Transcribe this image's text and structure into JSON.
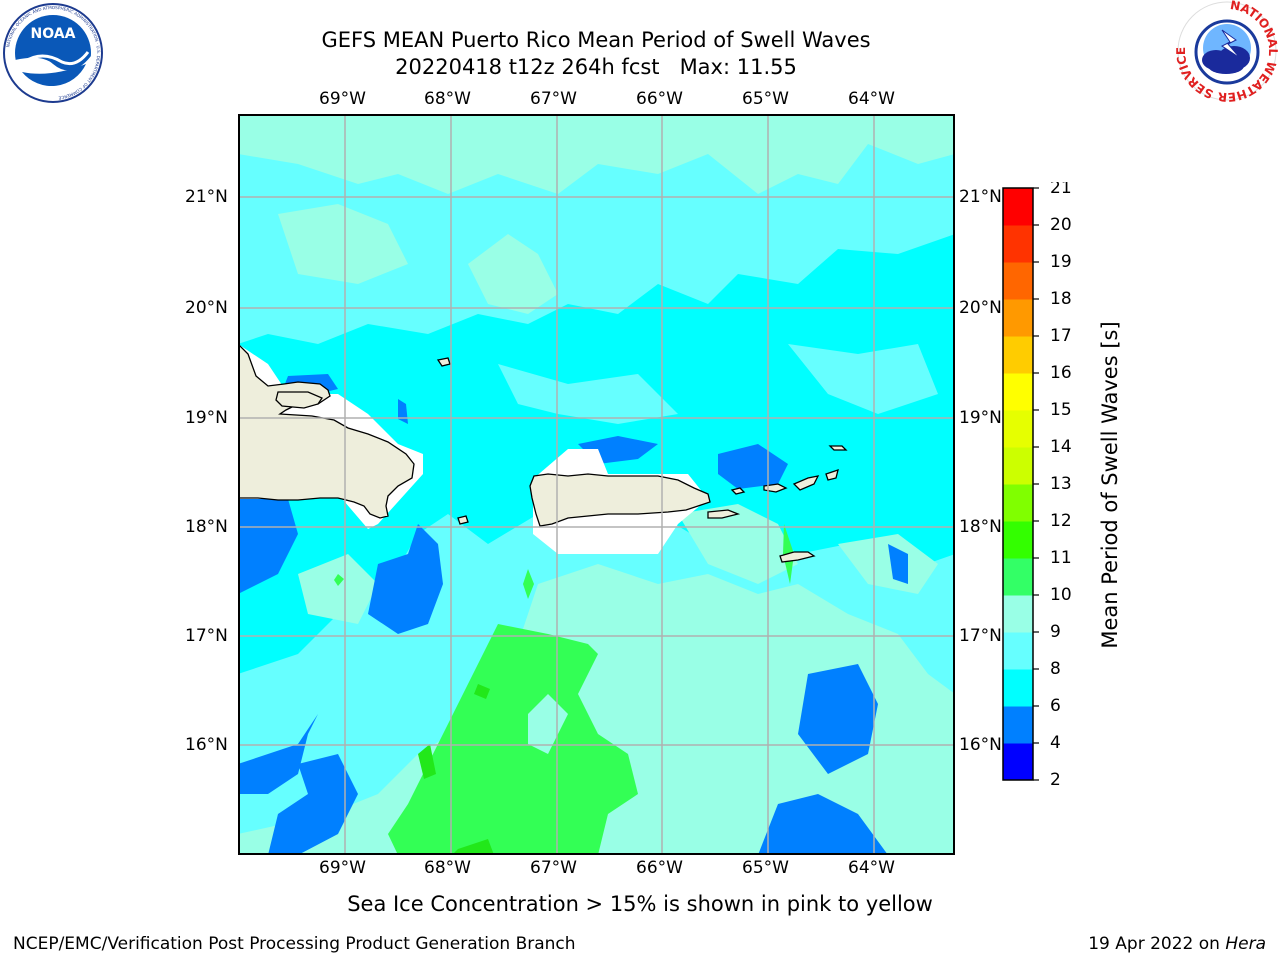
{
  "header": {
    "title_line1": "GEFS MEAN Puerto Rico Mean Period of Swell Waves",
    "title_line2": "20220418 t12z 264h fcst   Max: 11.55"
  },
  "logos": {
    "left_name": "NOAA",
    "left_ring_text": "NATIONAL OCEANIC AND ATMOSPHERIC ADMINISTRATION · U.S. DEPARTMENT OF COMMERCE",
    "right_ring_text": "NATIONAL WEATHER SERVICE"
  },
  "map": {
    "lon_labels": [
      "69°W",
      "68°W",
      "67°W",
      "66°W",
      "65°W",
      "64°W"
    ],
    "lat_labels": [
      "21°N",
      "20°N",
      "19°N",
      "18°N",
      "17°N",
      "16°N"
    ],
    "colors": {
      "land": "#eeeedc",
      "masked": "#ffffff",
      "grid": "#b0b0b0"
    }
  },
  "colorbar": {
    "label": "Mean Period of Swell Waves [s]",
    "ticks": [
      "2",
      "4",
      "6",
      "8",
      "9",
      "10",
      "11",
      "12",
      "13",
      "14",
      "15",
      "16",
      "17",
      "18",
      "19",
      "20",
      "21"
    ],
    "colors": [
      "#0000ff",
      "#0080ff",
      "#00ffff",
      "#66ffff",
      "#99ffe6",
      "#33ff66",
      "#33ff00",
      "#80ff00",
      "#ccff00",
      "#e6ff00",
      "#ffff00",
      "#ffcc00",
      "#ff9900",
      "#ff6600",
      "#ff3300",
      "#ff0000"
    ]
  },
  "subtitle": "Sea Ice Concentration > 15% is shown in pink to yellow",
  "footer": {
    "left": "NCEP/EMC/Verification Post Processing Product Generation Branch",
    "right_prefix": "19 Apr 2022 on ",
    "right_machine": "Hera"
  }
}
